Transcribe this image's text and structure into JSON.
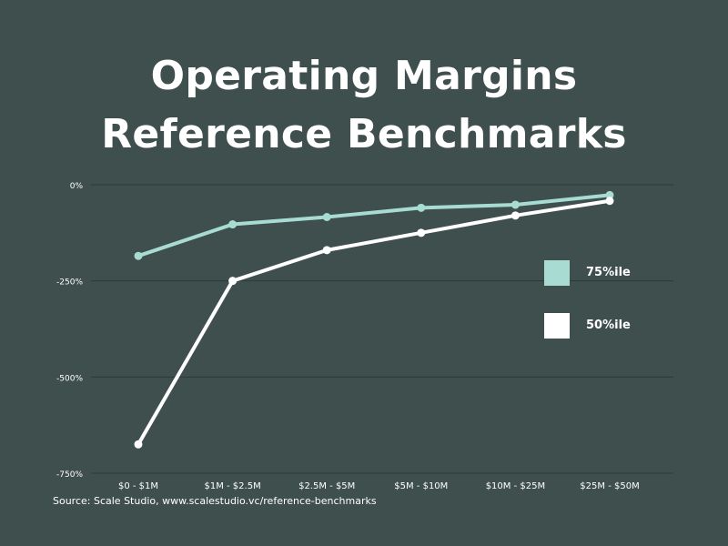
{
  "title_lines": [
    "Operating Margins",
    "Reference Benchmarks"
  ],
  "source": "Source: Scale Studio, www.scalestudio.vc/reference-benchmarks",
  "colors": {
    "background": "#3f4f4d",
    "grid": "#2c3a38",
    "series_75": "#a8dcd3",
    "series_50": "#ffffff",
    "text": "#ffffff"
  },
  "chart_data": {
    "type": "line",
    "categories": [
      "$0 - $1M",
      "$1M - $2.5M",
      "$2.5M - $5M",
      "$5M - $10M",
      "$10M - $25M",
      "$25M - $50M"
    ],
    "yticks": [
      "0%",
      "-250%",
      "-500%",
      "-750%"
    ],
    "ytick_values": [
      0,
      -250,
      -500,
      -750
    ],
    "ylim": [
      -750,
      0
    ],
    "grid": true,
    "legend_position": "right",
    "series": [
      {
        "name": "75%ile",
        "values": [
          -185,
          -103,
          -84,
          -60,
          -52,
          -27
        ],
        "color": "#a8dcd3"
      },
      {
        "name": "50%ile",
        "values": [
          -675,
          -250,
          -170,
          -125,
          -80,
          -42
        ],
        "color": "#ffffff"
      }
    ]
  }
}
